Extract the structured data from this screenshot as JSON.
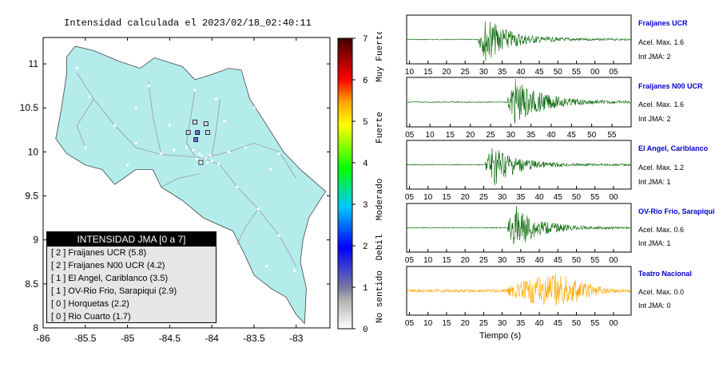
{
  "map": {
    "title": "Intensidad calculada el 2023/02/18_02:40:11",
    "xticks": [
      "-86",
      "-85.5",
      "-85",
      "-84.5",
      "-84",
      "-83.5",
      "-83"
    ],
    "yticks": [
      "11",
      "10.5",
      "10",
      "9.5",
      "9",
      "8.5",
      "8"
    ],
    "land_color": "#b4ecec",
    "water_color": "#ffffff"
  },
  "legend": {
    "title": "INTENSIDAD JMA [0 a 7]",
    "rows": [
      "[ 2 ]  Fraijanes UCR (5.8)",
      "[ 2 ]  Fraijanes N00 UCR (4.2)",
      "[ 1 ]  El Angel, Cariblanco (3.5)",
      "[ 1 ]  OV-Rio Frio, Sarapiqui (2.9)",
      "[ 0 ]  Horquetas (2.2)",
      "[ 0 ]  Rio Cuarto (1.7)"
    ]
  },
  "colorbar": {
    "ticks": [
      "7",
      "6",
      "5",
      "4",
      "3",
      "2",
      "1",
      "0"
    ],
    "labels": [
      "Muy Fuerte",
      "Fuerte",
      "Moderado",
      "Debil",
      "No sentido"
    ]
  },
  "stations": [
    {
      "name": "Fraijanes UCR",
      "accel": "Acel. Max. 1.6",
      "int": "Int JMA: 2",
      "ticks": [
        "10",
        "15",
        "20",
        "25",
        "30",
        "35",
        "40",
        "45",
        "50",
        "55",
        "00",
        "05"
      ],
      "color": "#006400"
    },
    {
      "name": "Fraijanes N00 UCR",
      "accel": "Acel. Max. 1.6",
      "int": "Int JMA: 2",
      "ticks": [
        "05",
        "10",
        "15",
        "20",
        "25",
        "30",
        "35",
        "40",
        "45",
        "50",
        "55"
      ],
      "color": "#006400"
    },
    {
      "name": "El Angel, Cariblanco",
      "accel": "Acel. Max. 1.2",
      "int": "Int JMA: 1",
      "ticks": [
        "05",
        "10",
        "15",
        "20",
        "25",
        "30",
        "35",
        "40",
        "45",
        "50",
        "55",
        "00"
      ],
      "color": "#006400"
    },
    {
      "name": "OV-Rio Frio, Sarapiqui",
      "accel": "Acel. Max. 0.6",
      "int": "Int JMA: 1",
      "ticks": [
        "05",
        "10",
        "15",
        "20",
        "25",
        "30",
        "35",
        "40",
        "45",
        "50",
        "55",
        "00"
      ],
      "color": "#006400"
    },
    {
      "name": "Teatro Nacional",
      "accel": "Acel. Max. 0.0",
      "int": "Int JMA: 0",
      "ticks": [
        "05",
        "10",
        "15",
        "20",
        "25",
        "30",
        "35",
        "40",
        "45",
        "50",
        "55",
        "00"
      ],
      "color": "#ffa500"
    }
  ],
  "time_axis_label": "Tiempo (s)",
  "chart_data": [
    {
      "type": "scatter",
      "title": "Intensidad calculada el 2023/02/18_02:40:11",
      "xlim": [
        -86,
        -82.6
      ],
      "ylim": [
        8,
        11.3
      ],
      "note_points": "station markers with JMA intensity",
      "points": [
        {
          "x": -84.2,
          "y": 10.34,
          "value": 1
        },
        {
          "x": -84.07,
          "y": 10.32,
          "value": 1
        },
        {
          "x": -84.28,
          "y": 10.22,
          "value": 1
        },
        {
          "x": -84.17,
          "y": 10.22,
          "value": 2
        },
        {
          "x": -84.05,
          "y": 10.22,
          "value": 1
        },
        {
          "x": -84.19,
          "y": 10.14,
          "value": 2
        },
        {
          "x": -84.13,
          "y": 9.88,
          "value": 0
        }
      ]
    },
    {
      "type": "line",
      "title": "",
      "series": [
        {
          "name": "Fraijanes UCR",
          "onset": 27,
          "peak": 1.6
        },
        {
          "name": "Fraijanes N00 UCR",
          "onset": 27,
          "peak": 1.6
        },
        {
          "name": "El Angel, Cariblanco",
          "onset": 26,
          "peak": 1.2
        },
        {
          "name": "OV-Rio Frio, Sarapiqui",
          "onset": 33,
          "peak": 0.6
        },
        {
          "name": "Teatro Nacional",
          "onset": 30,
          "peak": 0.0
        }
      ],
      "xlabel": "Tiempo (s)"
    }
  ]
}
